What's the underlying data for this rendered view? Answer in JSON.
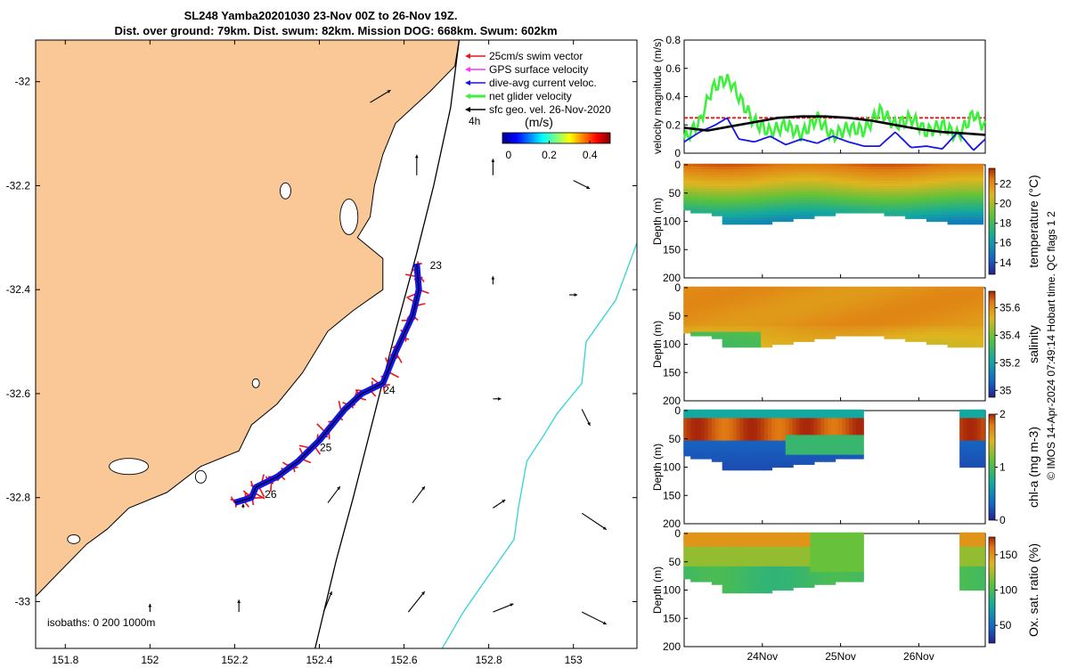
{
  "title": {
    "line1": "SL248 Yamba20201030 23-Nov 00Z to 26-Nov 19Z.",
    "line2": "Dist. over ground: 79km. Dist. swum: 82km. Mission DOG: 668km. Swum: 602km"
  },
  "copyright": "© IMOS 14-Apr-2024 07:49:14 Hobart time. QC flags 1 2",
  "colors": {
    "land": "#fac896",
    "swim_vector": "#e8161b",
    "gps_velocity": "#ff33ff",
    "dive_current": "#1515e6",
    "net_velocity": "#3cf03c",
    "sfc_geo": "#000000",
    "isobath_1000": "#33d4d4"
  },
  "chart_data": [
    {
      "type": "map",
      "name": "track-map",
      "xlim": [
        151.73,
        153.15
      ],
      "ylim": [
        -33.09,
        -31.92
      ],
      "xticks": [
        151.8,
        152,
        152.2,
        152.4,
        152.6,
        152.8,
        153
      ],
      "xtick_labels": [
        "151.8",
        "152",
        "152.2",
        "152.4",
        "152.6",
        "152.8",
        "153"
      ],
      "yticks": [
        -32,
        -32.2,
        -32.4,
        -32.6,
        -32.8,
        -33
      ],
      "ytick_labels": [
        "-32",
        "-32.2",
        "-32.4",
        "-32.6",
        "-32.8",
        "-33"
      ],
      "legend": {
        "placement": "top-right",
        "entries": [
          {
            "label": "25cm/s swim vector",
            "color": "#e8161b"
          },
          {
            "label": "GPS surface velocity",
            "color": "#ff33ff"
          },
          {
            "label": "dive-avg current veloc.",
            "color": "#1515e6"
          },
          {
            "label": "net glider velocity",
            "color": "#3cf03c"
          },
          {
            "label": "sfc geo. vel. 26-Nov-2020",
            "color": "#000000"
          }
        ],
        "interval": "4h"
      },
      "colorbar": {
        "label": "(m/s)",
        "ticks": [
          0,
          0.2,
          0.4
        ],
        "tick_labels": [
          "0",
          "0.2",
          "0.4"
        ],
        "range": [
          -0.03,
          0.5
        ]
      },
      "isobaths_label": "isobaths: 0   200  1000m",
      "track": [
        {
          "lon": 152.63,
          "lat": -32.35
        },
        {
          "lon": 152.635,
          "lat": -32.4
        },
        {
          "lon": 152.62,
          "lat": -32.45
        },
        {
          "lon": 152.58,
          "lat": -32.52
        },
        {
          "lon": 152.55,
          "lat": -32.58
        },
        {
          "lon": 152.5,
          "lat": -32.6
        },
        {
          "lon": 152.46,
          "lat": -32.63
        },
        {
          "lon": 152.4,
          "lat": -32.69
        },
        {
          "lon": 152.35,
          "lat": -32.73
        },
        {
          "lon": 152.3,
          "lat": -32.76
        },
        {
          "lon": 152.25,
          "lat": -32.78
        },
        {
          "lon": 152.24,
          "lat": -32.8
        },
        {
          "lon": 152.2,
          "lat": -32.81
        }
      ],
      "day_labels": [
        {
          "text": "23",
          "lon": 152.64,
          "lat": -32.35
        },
        {
          "text": "24",
          "lon": 152.53,
          "lat": -32.59
        },
        {
          "text": "25",
          "lon": 152.38,
          "lat": -32.7
        },
        {
          "text": "26",
          "lon": 152.25,
          "lat": -32.79
        }
      ],
      "coast": [
        {
          "lon": 152.73,
          "lat": -31.92
        },
        {
          "lon": 152.72,
          "lat": -31.97
        },
        {
          "lon": 152.66,
          "lat": -32.02
        },
        {
          "lon": 152.58,
          "lat": -32.08
        },
        {
          "lon": 152.55,
          "lat": -32.14
        },
        {
          "lon": 152.53,
          "lat": -32.2
        },
        {
          "lon": 152.52,
          "lat": -32.26
        },
        {
          "lon": 152.49,
          "lat": -32.3
        },
        {
          "lon": 152.55,
          "lat": -32.34
        },
        {
          "lon": 152.55,
          "lat": -32.4
        },
        {
          "lon": 152.48,
          "lat": -32.44
        },
        {
          "lon": 152.42,
          "lat": -32.48
        },
        {
          "lon": 152.36,
          "lat": -32.56
        },
        {
          "lon": 152.3,
          "lat": -32.62
        },
        {
          "lon": 152.24,
          "lat": -32.66
        },
        {
          "lon": 152.21,
          "lat": -32.71
        },
        {
          "lon": 152.12,
          "lat": -32.74
        },
        {
          "lon": 152.04,
          "lat": -32.79
        },
        {
          "lon": 151.95,
          "lat": -32.82
        },
        {
          "lon": 151.9,
          "lat": -32.86
        },
        {
          "lon": 151.85,
          "lat": -32.89
        },
        {
          "lon": 151.79,
          "lat": -32.94
        },
        {
          "lon": 151.73,
          "lat": -32.99
        }
      ],
      "isobath_200": [
        {
          "lon": 152.73,
          "lat": -31.92
        },
        {
          "lon": 152.71,
          "lat": -32.05
        },
        {
          "lon": 152.67,
          "lat": -32.2
        },
        {
          "lon": 152.63,
          "lat": -32.33
        },
        {
          "lon": 152.58,
          "lat": -32.48
        },
        {
          "lon": 152.53,
          "lat": -32.64
        },
        {
          "lon": 152.48,
          "lat": -32.8
        },
        {
          "lon": 152.44,
          "lat": -32.92
        },
        {
          "lon": 152.39,
          "lat": -33.09
        }
      ],
      "isobath_1000": [
        {
          "lon": 153.15,
          "lat": -32.31
        },
        {
          "lon": 153.1,
          "lat": -32.42
        },
        {
          "lon": 153.03,
          "lat": -32.5
        },
        {
          "lon": 153.02,
          "lat": -32.58
        },
        {
          "lon": 152.96,
          "lat": -32.64
        },
        {
          "lon": 152.93,
          "lat": -32.68
        },
        {
          "lon": 152.89,
          "lat": -32.73
        },
        {
          "lon": 152.87,
          "lat": -32.82
        },
        {
          "lon": 152.86,
          "lat": -32.88
        },
        {
          "lon": 152.8,
          "lat": -32.95
        },
        {
          "lon": 152.74,
          "lat": -33.02
        },
        {
          "lon": 152.69,
          "lat": -33.09
        }
      ],
      "geo_vectors": [
        {
          "lon": 152.52,
          "lat": -32.04,
          "u": 0.05,
          "v": 0.03
        },
        {
          "lon": 152.63,
          "lat": -32.18,
          "u": 0.0,
          "v": 0.05
        },
        {
          "lon": 152.81,
          "lat": -32.18,
          "u": 0.0,
          "v": 0.04
        },
        {
          "lon": 153.0,
          "lat": -32.19,
          "u": 0.04,
          "v": -0.02
        },
        {
          "lon": 152.81,
          "lat": -32.39,
          "u": 0.0,
          "v": 0.02
        },
        {
          "lon": 152.99,
          "lat": -32.41,
          "u": 0.02,
          "v": 0.0
        },
        {
          "lon": 152.81,
          "lat": -32.61,
          "u": 0.02,
          "v": 0.0
        },
        {
          "lon": 153.02,
          "lat": -32.63,
          "u": 0.02,
          "v": -0.04
        },
        {
          "lon": 152.42,
          "lat": -32.81,
          "u": 0.03,
          "v": 0.04
        },
        {
          "lon": 152.62,
          "lat": -32.81,
          "u": 0.03,
          "v": 0.04
        },
        {
          "lon": 152.81,
          "lat": -32.82,
          "u": 0.03,
          "v": 0.02
        },
        {
          "lon": 153.02,
          "lat": -32.83,
          "u": 0.06,
          "v": -0.04
        },
        {
          "lon": 152.22,
          "lat": -32.82,
          "u": 0.0,
          "v": 0.01
        },
        {
          "lon": 152.0,
          "lat": -33.02,
          "u": 0.0,
          "v": 0.02
        },
        {
          "lon": 152.21,
          "lat": -33.02,
          "u": 0.0,
          "v": 0.03
        },
        {
          "lon": 152.41,
          "lat": -33.02,
          "u": 0.02,
          "v": 0.05
        },
        {
          "lon": 152.61,
          "lat": -33.02,
          "u": 0.04,
          "v": 0.05
        },
        {
          "lon": 152.81,
          "lat": -33.02,
          "u": 0.05,
          "v": 0.02
        },
        {
          "lon": 153.02,
          "lat": -33.02,
          "u": 0.06,
          "v": -0.03
        }
      ]
    },
    {
      "type": "line",
      "name": "velocity-magnitude",
      "ylabel": "velocity magnitude (m/s)",
      "ylim": [
        0,
        0.8
      ],
      "yticks": [
        0,
        0.2,
        0.4,
        0.6,
        0.8
      ],
      "ytick_labels": [
        "0",
        "0.2",
        "0.4",
        "0.6",
        "0.8"
      ],
      "xlim": [
        0,
        3.85
      ],
      "series": [
        {
          "color": "#e8161b",
          "x": [
            0,
            3.85
          ],
          "y": [
            0.25,
            0.25
          ]
        },
        {
          "color": "#3cf03c",
          "x": [
            0,
            0.2,
            0.35,
            0.5,
            0.6,
            0.75,
            0.9,
            1.1,
            1.3,
            1.5,
            1.7,
            1.9,
            2.1,
            2.3,
            2.5,
            2.7,
            2.9,
            3.1,
            3.3,
            3.5,
            3.7,
            3.85
          ],
          "y": [
            0.1,
            0.22,
            0.45,
            0.52,
            0.5,
            0.35,
            0.22,
            0.15,
            0.2,
            0.13,
            0.25,
            0.12,
            0.18,
            0.16,
            0.3,
            0.2,
            0.25,
            0.15,
            0.2,
            0.12,
            0.28,
            0.18
          ]
        },
        {
          "color": "#1515e6",
          "x": [
            0,
            0.2,
            0.4,
            0.55,
            0.7,
            0.9,
            1.1,
            1.3,
            1.5,
            1.7,
            1.9,
            2.1,
            2.3,
            2.5,
            2.7,
            2.9,
            3.1,
            3.3,
            3.5,
            3.7,
            3.85
          ],
          "y": [
            0.08,
            0.15,
            0.2,
            0.25,
            0.1,
            0.08,
            0.12,
            0.06,
            0.1,
            0.07,
            0.12,
            0.08,
            0.05,
            0.05,
            0.15,
            0.04,
            0.05,
            0.03,
            0.15,
            0.02,
            0.1
          ]
        },
        {
          "color": "#000000",
          "x": [
            0,
            0.3,
            0.6,
            0.9,
            1.2,
            1.5,
            1.8,
            2.1,
            2.4,
            2.7,
            3.0,
            3.3,
            3.6,
            3.85
          ],
          "y": [
            0.18,
            0.16,
            0.19,
            0.22,
            0.25,
            0.26,
            0.26,
            0.25,
            0.23,
            0.2,
            0.17,
            0.15,
            0.14,
            0.13
          ]
        }
      ]
    },
    {
      "type": "heatmap",
      "name": "temperature-section",
      "ylabel": "Depth (m)",
      "cbar_label": "temperature (°C)",
      "cbar_ticks": [
        14,
        16,
        18,
        20,
        22
      ],
      "cbar_range": [
        12.8,
        23.6
      ],
      "ylim": [
        200,
        0
      ],
      "yticks": [
        0,
        50,
        100,
        150,
        200
      ],
      "ytick_labels": [
        "0",
        "50",
        "100",
        "150",
        "200"
      ]
    },
    {
      "type": "heatmap",
      "name": "salinity-section",
      "ylabel": "Depth (m)",
      "cbar_label": "salinity",
      "cbar_ticks": [
        35,
        35.2,
        35.4,
        35.6
      ],
      "cbar_tick_labels": [
        "35",
        "35.2",
        "35.4",
        "35.6"
      ],
      "cbar_range": [
        34.95,
        35.72
      ],
      "ylim": [
        200,
        0
      ],
      "yticks": [
        0,
        50,
        100,
        150,
        200
      ],
      "ytick_labels": [
        "0",
        "50",
        "100",
        "150",
        "200"
      ]
    },
    {
      "type": "heatmap",
      "name": "chla-section",
      "ylabel": "Depth (m)",
      "cbar_label": "chl-a (mg m-3)",
      "cbar_ticks": [
        0,
        1,
        2
      ],
      "cbar_tick_labels": [
        "0",
        "1",
        "2"
      ],
      "cbar_range": [
        0,
        2
      ],
      "ylim": [
        200,
        0
      ],
      "yticks": [
        0,
        50,
        100,
        150,
        200
      ],
      "ytick_labels": [
        "0",
        "50",
        "100",
        "150",
        "200"
      ]
    },
    {
      "type": "heatmap",
      "name": "oxygen-section",
      "ylabel": "Depth (m)",
      "cbar_label": "Ox. sat. ratio (%)",
      "cbar_ticks": [
        50,
        100,
        150
      ],
      "cbar_tick_labels": [
        "50",
        "100",
        "150"
      ],
      "cbar_range": [
        25,
        175
      ],
      "ylim": [
        200,
        0
      ],
      "yticks": [
        0,
        50,
        100,
        150,
        200
      ],
      "ytick_labels": [
        "0",
        "50",
        "100",
        "150",
        "200"
      ],
      "xticks": [
        1,
        2,
        3
      ],
      "xtick_labels": [
        "24Nov",
        "25Nov",
        "26Nov"
      ]
    }
  ]
}
